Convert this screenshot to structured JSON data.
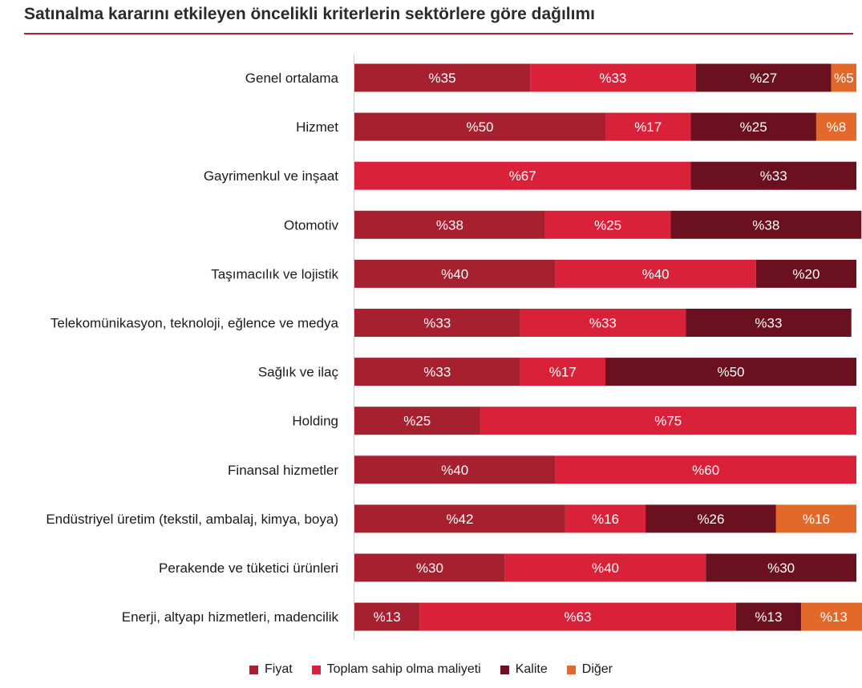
{
  "chart_data": {
    "type": "bar",
    "orientation": "horizontal",
    "stacked": true,
    "normalized": true,
    "title": "Satınalma kararını etkileyen öncelikli kriterlerin sektörlere göre dağılımı",
    "xlabel": "",
    "ylabel": "",
    "xlim": [
      0,
      100
    ],
    "grid": false,
    "legend_position": "bottom",
    "categories": [
      "Genel ortalama",
      "Hizmet",
      "Gayrimenkul ve inşaat",
      "Otomotiv",
      "Taşımacılık ve lojistik",
      "Telekomünikasyon, teknoloji, eğlence ve medya",
      "Sağlık ve ilaç",
      "Holding",
      "Finansal hizmetler",
      "Endüstriyel üretim (tekstil, ambalaj, kimya, boya)",
      "Perakende ve tüketici ürünleri",
      "Enerji, altyapı hizmetleri, madencilik"
    ],
    "series": [
      {
        "name": "Fiyat",
        "color": "#a6202f",
        "values": [
          35,
          50,
          0,
          38,
          40,
          33,
          33,
          25,
          40,
          42,
          30,
          13
        ]
      },
      {
        "name": "Toplam sahip olma maliyeti",
        "color": "#d9223a",
        "values": [
          33,
          17,
          67,
          25,
          40,
          33,
          17,
          75,
          60,
          16,
          40,
          63
        ]
      },
      {
        "name": "Kalite",
        "color": "#6b101e",
        "values": [
          27,
          25,
          33,
          38,
          20,
          33,
          50,
          0,
          0,
          26,
          30,
          13
        ]
      },
      {
        "name": "Diğer",
        "color": "#e2692a",
        "values": [
          5,
          8,
          0,
          0,
          0,
          0,
          0,
          0,
          0,
          16,
          0,
          13
        ]
      }
    ],
    "value_prefix": "%"
  }
}
